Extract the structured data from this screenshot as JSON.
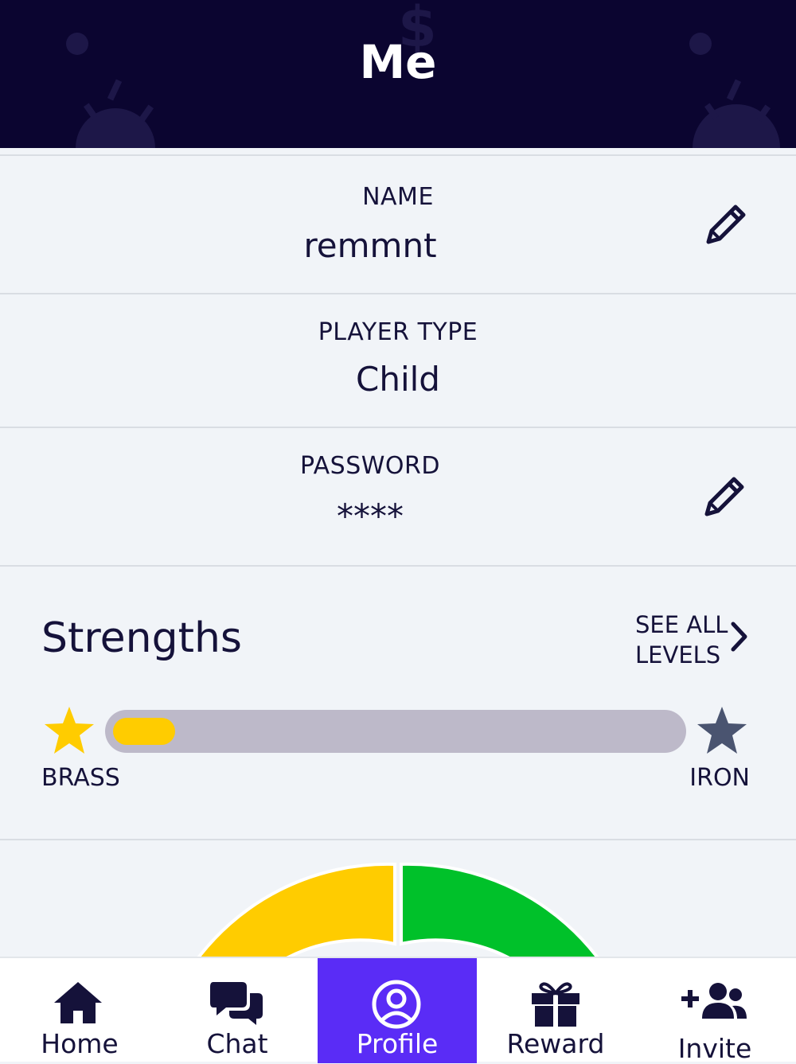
{
  "header": {
    "title": "Me"
  },
  "fields": {
    "name": {
      "label": "NAME",
      "value": "remmnt"
    },
    "player_type": {
      "label": "PLAYER TYPE",
      "value": "Child"
    },
    "password": {
      "label": "PASSWORD",
      "value": "****"
    }
  },
  "strengths": {
    "title": "Strengths",
    "see_all": [
      "SEE ALL",
      "LEVELS"
    ],
    "progress_fraction": 0.11,
    "current_level": "BRASS",
    "next_level": "IRON"
  },
  "colors": {
    "header_bg": "#0b0530",
    "accent": "#5a2cf6",
    "brass_star": "#ffcc00",
    "iron_star": "#4a5470",
    "gauge_yellow": "#ffcc00",
    "gauge_green": "#00c12a"
  },
  "nav": {
    "items": [
      {
        "label": "Home",
        "icon": "home-icon"
      },
      {
        "label": "Chat",
        "icon": "chat-icon"
      },
      {
        "label": "Profile",
        "icon": "profile-icon",
        "active": true
      },
      {
        "label": "Reward",
        "icon": "gift-icon"
      },
      {
        "label": "Invite",
        "icon": "invite-icon"
      }
    ]
  }
}
